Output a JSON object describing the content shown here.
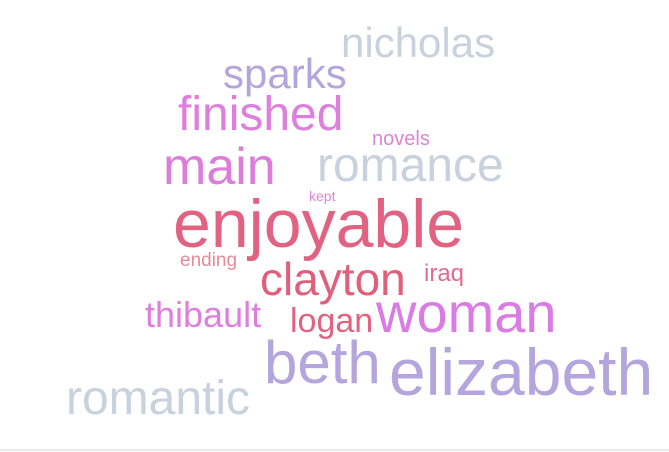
{
  "word_cloud": {
    "words": [
      {
        "text": "nicholas",
        "color": "#c7d2de"
      },
      {
        "text": "sparks",
        "color": "#b4a5dd"
      },
      {
        "text": "finished",
        "color": "#de7fde"
      },
      {
        "text": "novels",
        "color": "#dd84d6"
      },
      {
        "text": "main",
        "color": "#dd7cdb"
      },
      {
        "text": "romance",
        "color": "#c7d2de"
      },
      {
        "text": "kept",
        "color": "#dd84d6"
      },
      {
        "text": "enjoyable",
        "color": "#e16381"
      },
      {
        "text": "ending",
        "color": "#e38c9a"
      },
      {
        "text": "iraq",
        "color": "#e26b8c"
      },
      {
        "text": "clayton",
        "color": "#e05f7b"
      },
      {
        "text": "thibault",
        "color": "#de7fde"
      },
      {
        "text": "logan",
        "color": "#e16381"
      },
      {
        "text": "woman",
        "color": "#d97ce3"
      },
      {
        "text": "beth",
        "color": "#b4a5dd"
      },
      {
        "text": "elizabeth",
        "color": "#b4a5dd"
      },
      {
        "text": "romantic",
        "color": "#c7d2de"
      }
    ]
  }
}
